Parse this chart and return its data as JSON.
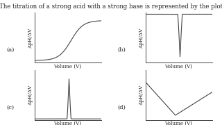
{
  "title": "The titration of a strong acid with a strong base is represented by the plot",
  "title_fontsize": 6.2,
  "background_color": "#ffffff",
  "text_color": "#222222",
  "line_color": "#444444",
  "ylabel": "ΔpH/ΔV",
  "xlabel": "Volume (V)",
  "sublabel_fontsize": 6.0,
  "axis_label_fontsize": 5.2,
  "subplot_label_fontsize": 6.0
}
